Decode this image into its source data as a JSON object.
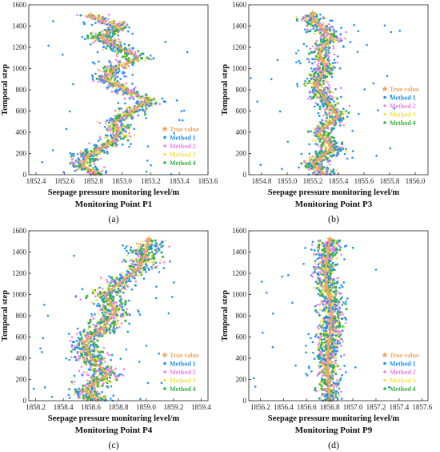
{
  "colors": {
    "true_value": "#f4a460",
    "method_1": "#1e90ff",
    "method_2": "#ee82ee",
    "method_3": "#f5e050",
    "method_4": "#3cb043",
    "axis": "#222222"
  },
  "chart_data": [
    {
      "type": "scatter",
      "panel_letter": "(a)",
      "subtitle": "Monitoring Point P1",
      "xlabel": "Seepage pressure monitoring level/m",
      "ylabel": "Temporal step",
      "xlim": [
        1852.35,
        1853.6
      ],
      "ylim": [
        0,
        1600
      ],
      "xticks": [
        "1852.4",
        "1852.6",
        "1852.8",
        "1853.0",
        "1853.2",
        "1853.4",
        "1853.6"
      ],
      "xtick_values": [
        1852.4,
        1852.6,
        1852.8,
        1853.0,
        1853.2,
        1853.4,
        1853.6
      ],
      "yticks": [
        "0",
        "200",
        "400",
        "600",
        "800",
        "1000",
        "1200",
        "1400",
        "1600"
      ],
      "ytick_values": [
        0,
        200,
        400,
        600,
        800,
        1000,
        1200,
        1400,
        1600
      ],
      "true_value_path": [
        [
          1852.82,
          0
        ],
        [
          1852.72,
          100
        ],
        [
          1852.78,
          200
        ],
        [
          1852.92,
          300
        ],
        [
          1852.98,
          400
        ],
        [
          1852.95,
          500
        ],
        [
          1853.08,
          600
        ],
        [
          1853.18,
          700
        ],
        [
          1853.02,
          800
        ],
        [
          1852.88,
          900
        ],
        [
          1852.95,
          1000
        ],
        [
          1853.12,
          1100
        ],
        [
          1852.98,
          1200
        ],
        [
          1852.85,
          1300
        ],
        [
          1852.98,
          1400
        ],
        [
          1852.78,
          1500
        ]
      ],
      "spread": 0.1,
      "legend": [
        "True value",
        "Method 1",
        "Method 2",
        "Method 3",
        "Method 4"
      ],
      "legend_position": "lower-right"
    },
    {
      "type": "scatter",
      "panel_letter": "(b)",
      "subtitle": "Monitoring Point P3",
      "xlabel": "Seepage pressure monitoring level/m",
      "ylabel": "Temporal step",
      "xlim": [
        1854.7,
        1856.1
      ],
      "ylim": [
        0,
        1600
      ],
      "xticks": [
        "1854.8",
        "1855.0",
        "1855.2",
        "1855.4",
        "1855.6",
        "1855.8",
        "1856.0"
      ],
      "xtick_values": [
        1854.8,
        1855.0,
        1855.2,
        1855.4,
        1855.6,
        1855.8,
        1856.0
      ],
      "yticks": [
        "0",
        "200",
        "400",
        "600",
        "800",
        "1000",
        "1200",
        "1400",
        "1600"
      ],
      "ytick_values": [
        0,
        200,
        400,
        600,
        800,
        1000,
        1200,
        1400,
        1600
      ],
      "true_value_path": [
        [
          1855.3,
          0
        ],
        [
          1855.2,
          100
        ],
        [
          1855.35,
          250
        ],
        [
          1855.25,
          400
        ],
        [
          1855.4,
          550
        ],
        [
          1855.3,
          700
        ],
        [
          1855.22,
          850
        ],
        [
          1855.3,
          1000
        ],
        [
          1855.25,
          1150
        ],
        [
          1855.35,
          1300
        ],
        [
          1855.2,
          1450
        ],
        [
          1855.2,
          1520
        ]
      ],
      "spread": 0.1,
      "legend": [
        "True value",
        "Method 1",
        "Method 2",
        "Method 3",
        "Method 4"
      ],
      "legend_position": "right"
    },
    {
      "type": "scatter",
      "panel_letter": "(c)",
      "subtitle": "Monitoring Point P4",
      "xlabel": "Seepage pressure monitoring level/m",
      "ylabel": "Temporal step",
      "xlim": [
        1858.15,
        1859.45
      ],
      "ylim": [
        0,
        1600
      ],
      "xticks": [
        "1858.2",
        "1858.4",
        "1858.6",
        "1858.8",
        "1859.0",
        "1859.2",
        "1859.4"
      ],
      "xtick_values": [
        1858.2,
        1858.4,
        1858.6,
        1858.8,
        1859.0,
        1859.2,
        1859.4
      ],
      "yticks": [
        "0",
        "200",
        "400",
        "600",
        "800",
        "1000",
        "1200",
        "1400",
        "1600"
      ],
      "ytick_values": [
        0,
        200,
        400,
        600,
        800,
        1000,
        1200,
        1400,
        1600
      ],
      "true_value_path": [
        [
          1858.65,
          0
        ],
        [
          1858.55,
          100
        ],
        [
          1858.72,
          250
        ],
        [
          1858.6,
          400
        ],
        [
          1858.55,
          550
        ],
        [
          1858.7,
          700
        ],
        [
          1858.78,
          850
        ],
        [
          1858.7,
          1000
        ],
        [
          1858.8,
          1100
        ],
        [
          1858.95,
          1250
        ],
        [
          1859.0,
          1400
        ],
        [
          1859.02,
          1520
        ]
      ],
      "spread": 0.12,
      "legend": [
        "True value",
        "Method 1",
        "Method 2",
        "Method 3",
        "Method 4"
      ],
      "legend_position": "lower-right"
    },
    {
      "type": "scatter",
      "panel_letter": "(d)",
      "subtitle": "Monitoring Point P9",
      "xlabel": "Seepage pressure monitoring level/m",
      "ylabel": "Temporal step",
      "xlim": [
        1856.1,
        1857.65
      ],
      "ylim": [
        0,
        1600
      ],
      "xticks": [
        "1856.2",
        "1856.4",
        "1856.6",
        "1856.8",
        "1857.0",
        "1857.2",
        "1857.4",
        "1857.6"
      ],
      "xtick_values": [
        1856.2,
        1856.4,
        1856.6,
        1856.8,
        1857.0,
        1857.2,
        1857.4,
        1857.6
      ],
      "yticks": [
        "0",
        "200",
        "400",
        "600",
        "800",
        "1000",
        "1200",
        "1400",
        "1600"
      ],
      "ytick_values": [
        0,
        200,
        400,
        600,
        800,
        1000,
        1200,
        1400,
        1600
      ],
      "true_value_path": [
        [
          1856.8,
          0
        ],
        [
          1856.78,
          400
        ],
        [
          1856.82,
          800
        ],
        [
          1856.76,
          1200
        ],
        [
          1856.8,
          1520
        ]
      ],
      "spread": 0.1,
      "legend": [
        "True value",
        "Method 1",
        "Method 2",
        "Method 3",
        "Method 4"
      ],
      "legend_position": "lower-right"
    }
  ]
}
